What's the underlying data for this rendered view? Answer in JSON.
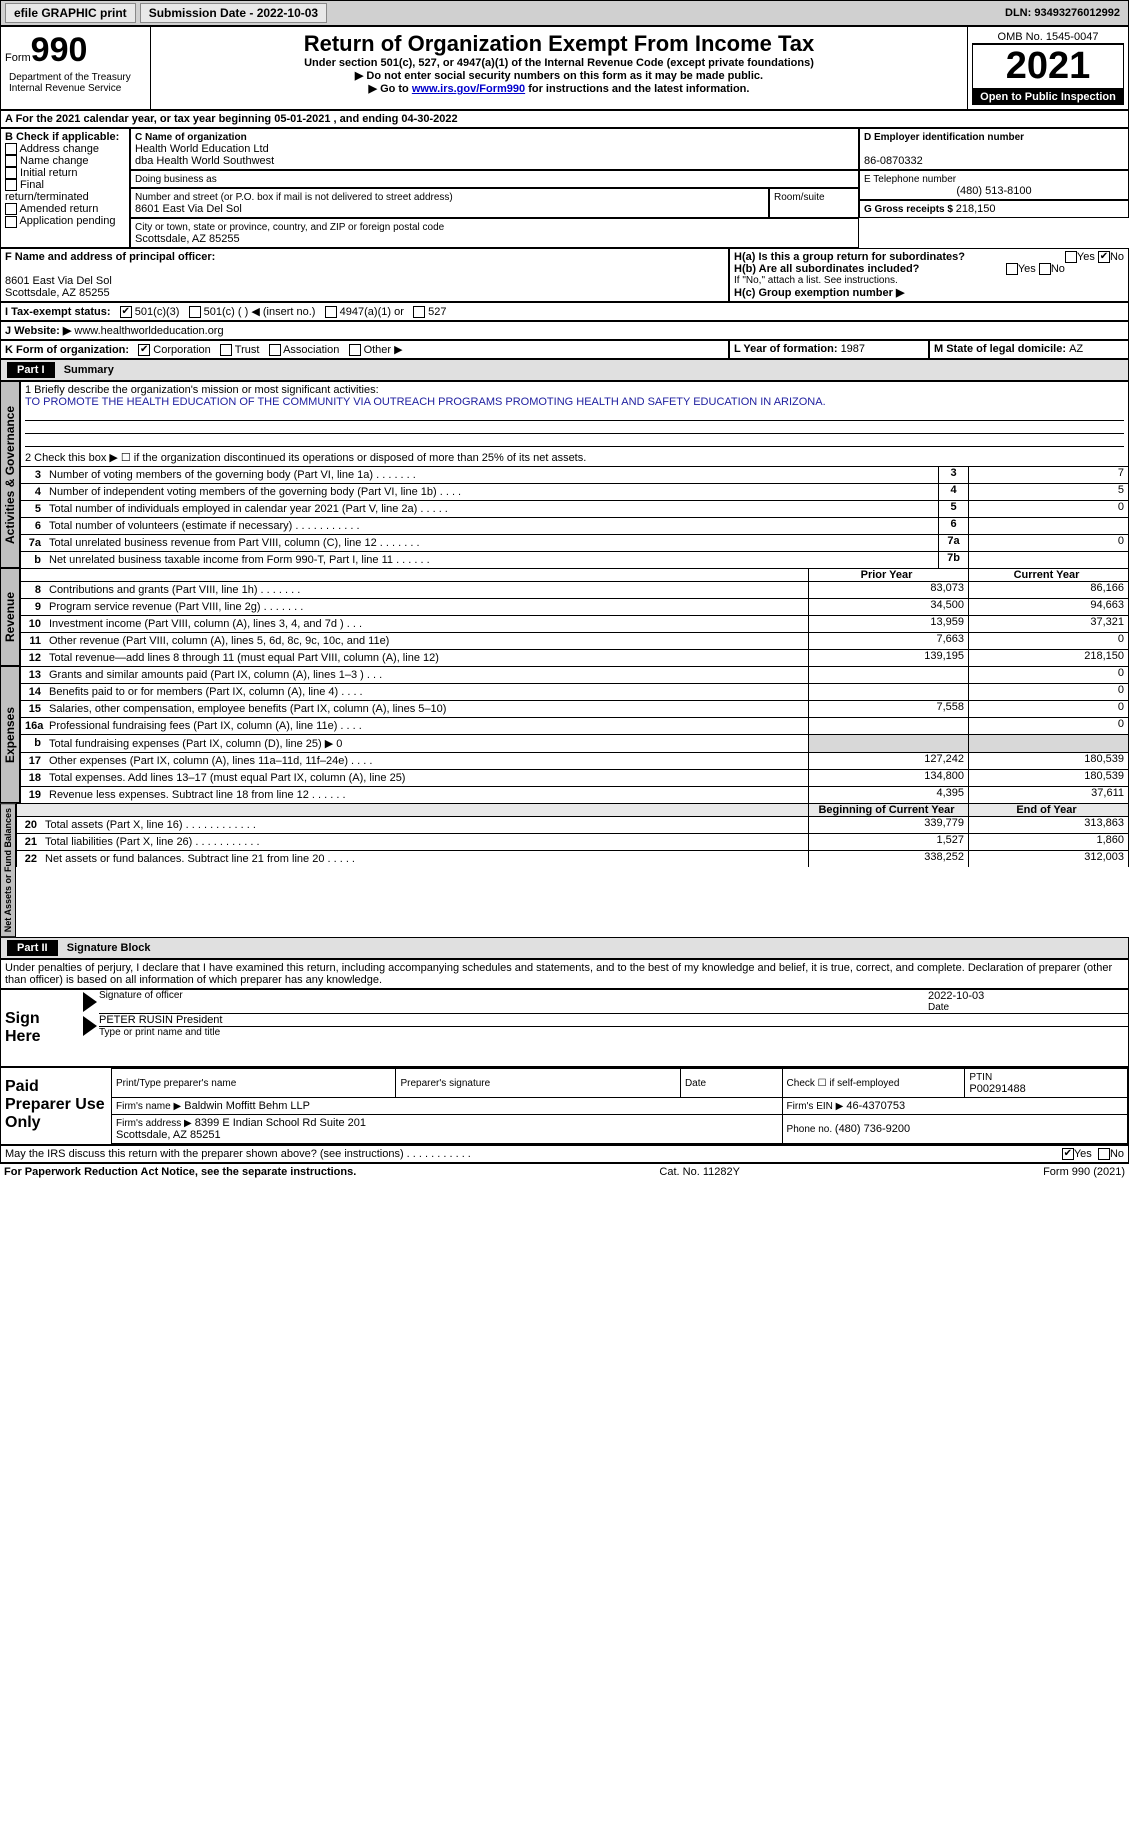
{
  "topbar": {
    "efile": "efile GRAPHIC print",
    "submission_label": "Submission Date - 2022-10-03",
    "dln_label": "DLN: 93493276012992"
  },
  "header": {
    "form_small": "Form",
    "form_big": "990",
    "title": "Return of Organization Exempt From Income Tax",
    "subtitle": "Under section 501(c), 527, or 4947(a)(1) of the Internal Revenue Code (except private foundations)",
    "note1": "▶ Do not enter social security numbers on this form as it may be made public.",
    "note2_prefix": "▶ Go to ",
    "note2_link": "www.irs.gov/Form990",
    "note2_suffix": " for instructions and the latest information.",
    "dept": "Department of the Treasury\nInternal Revenue Service",
    "omb": "OMB No. 1545-0047",
    "year": "2021",
    "open_pub": "Open to Public Inspection"
  },
  "lineA": {
    "text_prefix": "A For the 2021 calendar year, or tax year beginning ",
    "begin": "05-01-2021",
    "mid": " , and ending ",
    "end": "04-30-2022"
  },
  "boxB": {
    "label": "B Check if applicable:",
    "opts": [
      "Address change",
      "Name change",
      "Initial return",
      "Final return/terminated",
      "Amended return",
      "Application pending"
    ]
  },
  "boxC": {
    "label": "C Name of organization",
    "name": "Health World Education Ltd\ndba Health World Southwest",
    "dba_label": "Doing business as",
    "street_label": "Number and street (or P.O. box if mail is not delivered to street address)",
    "street": "8601 East Via Del Sol",
    "room_label": "Room/suite",
    "city_label": "City or town, state or province, country, and ZIP or foreign postal code",
    "city": "Scottsdale, AZ  85255"
  },
  "boxD": {
    "label": "D Employer identification number",
    "value": "86-0870332"
  },
  "boxE": {
    "label": "E Telephone number",
    "value": "(480) 513-8100"
  },
  "boxG": {
    "label": "G Gross receipts $ ",
    "value": "218,150"
  },
  "boxF": {
    "label": "F Name and address of principal officer:",
    "addr": "8601 East Via Del Sol\nScottsdale, AZ  85255"
  },
  "boxH": {
    "a": "H(a)  Is this a group return for subordinates?",
    "a_yes": "Yes",
    "a_no": "No",
    "a_checked": "no",
    "b": "H(b)  Are all subordinates included?",
    "b_note": "If \"No,\" attach a list. See instructions.",
    "c": "H(c)  Group exemption number ▶"
  },
  "lineI": {
    "label": "I   Tax-exempt status:",
    "opts": [
      "501(c)(3)",
      "501(c) (  ) ◀ (insert no.)",
      "4947(a)(1) or",
      "527"
    ],
    "checked": 0
  },
  "lineJ": {
    "label": "J   Website: ▶",
    "value": "www.healthworldeducation.org"
  },
  "lineK": {
    "label": "K Form of organization:",
    "opts": [
      "Corporation",
      "Trust",
      "Association",
      "Other ▶"
    ],
    "checked": 0
  },
  "lineL": {
    "label": "L Year of formation: ",
    "value": "1987"
  },
  "lineM": {
    "label": "M State of legal domicile: ",
    "value": "AZ"
  },
  "part1": {
    "tab": "Part I",
    "title": "Summary",
    "line1_label": "1   Briefly describe the organization's mission or most significant activities:",
    "mission": "TO PROMOTE THE HEALTH EDUCATION OF THE COMMUNITY VIA OUTREACH PROGRAMS PROMOTING HEALTH AND SAFETY EDUCATION IN ARIZONA.",
    "line2": "2   Check this box ▶ ☐ if the organization discontinued its operations or disposed of more than 25% of its net assets.",
    "activities_label": "Activities & Governance",
    "revenue_label": "Revenue",
    "expenses_label": "Expenses",
    "netassets_label": "Net Assets or Fund Balances",
    "rows_ag": [
      {
        "n": "3",
        "d": "Number of voting members of the governing body (Part VI, line 1a)   .    .    .    .    .    .    .",
        "box": "3",
        "v": "7"
      },
      {
        "n": "4",
        "d": "Number of independent voting members of the governing body (Part VI, line 1b)   .    .    .    .",
        "box": "4",
        "v": "5"
      },
      {
        "n": "5",
        "d": "Total number of individuals employed in calendar year 2021 (Part V, line 2a)   .    .    .    .    .",
        "box": "5",
        "v": "0"
      },
      {
        "n": "6",
        "d": "Total number of volunteers (estimate if necessary)   .    .    .    .    .    .    .    .    .    .    .",
        "box": "6",
        "v": ""
      },
      {
        "n": "7a",
        "d": "Total unrelated business revenue from Part VIII, column (C), line 12   .    .    .    .    .    .    .",
        "box": "7a",
        "v": "0"
      },
      {
        "n": "b",
        "d": "Net unrelated business taxable income from Form 990-T, Part I, line 11   .    .    .    .    .    .",
        "box": "7b",
        "v": ""
      }
    ],
    "rev_header": {
      "prior": "Prior Year",
      "current": "Current Year"
    },
    "rows_rev": [
      {
        "n": "8",
        "d": "Contributions and grants (Part VIII, line 1h)   .    .    .    .    .    .    .",
        "p": "83,073",
        "c": "86,166"
      },
      {
        "n": "9",
        "d": "Program service revenue (Part VIII, line 2g)   .    .    .    .    .    .    .",
        "p": "34,500",
        "c": "94,663"
      },
      {
        "n": "10",
        "d": "Investment income (Part VIII, column (A), lines 3, 4, and 7d )   .    .    .",
        "p": "13,959",
        "c": "37,321"
      },
      {
        "n": "11",
        "d": "Other revenue (Part VIII, column (A), lines 5, 6d, 8c, 9c, 10c, and 11e)",
        "p": "7,663",
        "c": "0"
      },
      {
        "n": "12",
        "d": "Total revenue—add lines 8 through 11 (must equal Part VIII, column (A), line 12)",
        "p": "139,195",
        "c": "218,150"
      }
    ],
    "rows_exp": [
      {
        "n": "13",
        "d": "Grants and similar amounts paid (Part IX, column (A), lines 1–3 )   .    .    .",
        "p": "",
        "c": "0"
      },
      {
        "n": "14",
        "d": "Benefits paid to or for members (Part IX, column (A), line 4)   .    .    .    .",
        "p": "",
        "c": "0"
      },
      {
        "n": "15",
        "d": "Salaries, other compensation, employee benefits (Part IX, column (A), lines 5–10)",
        "p": "7,558",
        "c": "0"
      },
      {
        "n": "16a",
        "d": "Professional fundraising fees (Part IX, column (A), line 11e)   .    .    .    .",
        "p": "",
        "c": "0"
      },
      {
        "n": "b",
        "d": "Total fundraising expenses (Part IX, column (D), line 25) ▶ 0",
        "p": "GRAY",
        "c": "GRAY"
      },
      {
        "n": "17",
        "d": "Other expenses (Part IX, column (A), lines 11a–11d, 11f–24e)   .    .    .    .",
        "p": "127,242",
        "c": "180,539"
      },
      {
        "n": "18",
        "d": "Total expenses. Add lines 13–17 (must equal Part IX, column (A), line 25)",
        "p": "134,800",
        "c": "180,539"
      },
      {
        "n": "19",
        "d": "Revenue less expenses. Subtract line 18 from line 12   .    .    .    .    .    .",
        "p": "4,395",
        "c": "37,611"
      }
    ],
    "na_header": {
      "prior": "Beginning of Current Year",
      "current": "End of Year"
    },
    "rows_na": [
      {
        "n": "20",
        "d": "Total assets (Part X, line 16)   .    .    .    .    .    .    .    .    .    .    .    .",
        "p": "339,779",
        "c": "313,863"
      },
      {
        "n": "21",
        "d": "Total liabilities (Part X, line 26)   .    .    .    .    .    .    .    .    .    .    .",
        "p": "1,527",
        "c": "1,860"
      },
      {
        "n": "22",
        "d": "Net assets or fund balances. Subtract line 21 from line 20   .    .    .    .    .",
        "p": "338,252",
        "c": "312,003"
      }
    ]
  },
  "part2": {
    "tab": "Part II",
    "title": "Signature Block",
    "declaration": "Under penalties of perjury, I declare that I have examined this return, including accompanying schedules and statements, and to the best of my knowledge and belief, it is true, correct, and complete. Declaration of preparer (other than officer) is based on all information of which preparer has any knowledge.",
    "sign_here": "Sign Here",
    "sig_officer": "Signature of officer",
    "sig_date": "2022-10-03",
    "sig_name": "PETER RUSIN  President",
    "sig_type": "Type or print name and title",
    "paid_prep": "Paid Preparer Use Only",
    "prep_name_label": "Print/Type preparer's name",
    "prep_sig_label": "Preparer's signature",
    "prep_date_label": "Date",
    "check_if": "Check ☐ if self-employed",
    "ptin_label": "PTIN",
    "ptin": "P00291488",
    "firm_name_label": "Firm's name    ▶",
    "firm_name": "Baldwin Moffitt Behm LLP",
    "firm_ein_label": "Firm's EIN ▶",
    "firm_ein": "46-4370753",
    "firm_addr_label": "Firm's address ▶",
    "firm_addr": "8399 E Indian School Rd Suite 201\nScottsdale, AZ  85251",
    "phone_label": "Phone no. ",
    "phone": "(480) 736-9200",
    "discuss": "May the IRS discuss this return with the preparer shown above? (see instructions)   .    .    .    .    .    .    .    .    .    .    .",
    "discuss_yes": "Yes",
    "discuss_no": "No",
    "discuss_checked": "yes"
  },
  "footer": {
    "left": "For Paperwork Reduction Act Notice, see the separate instructions.",
    "mid": "Cat. No. 11282Y",
    "right": "Form 990 (2021)"
  }
}
